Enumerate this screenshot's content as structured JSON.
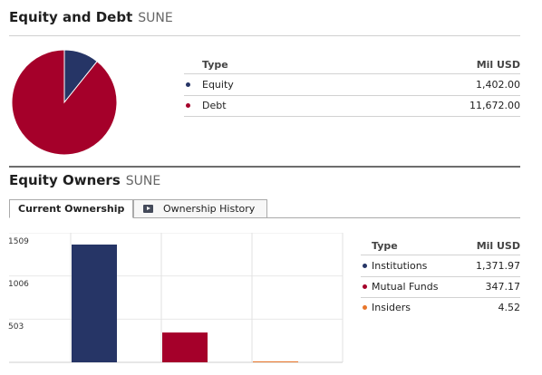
{
  "equity_debt": {
    "title": "Equity and Debt",
    "ticker": "SUNE",
    "table": {
      "col_type": "Type",
      "col_value": "Mil USD",
      "rows": [
        {
          "label": "Equity",
          "value": "1,402.00",
          "color": "#263566"
        },
        {
          "label": "Debt",
          "value": "11,672.00",
          "color": "#a5002a"
        }
      ]
    },
    "pie": [
      {
        "label": "Equity",
        "value": 1402.0,
        "color": "#263566"
      },
      {
        "label": "Debt",
        "value": 11672.0,
        "color": "#a5002a"
      }
    ]
  },
  "equity_owners": {
    "title": "Equity Owners",
    "ticker": "SUNE",
    "tabs": [
      {
        "label": "Current Ownership",
        "active": true
      },
      {
        "label": "Ownership History",
        "active": false,
        "icon": "video-icon"
      }
    ],
    "table": {
      "col_type": "Type",
      "col_value": "Mil USD",
      "rows": [
        {
          "label": "Institutions",
          "value": "1,371.97",
          "color": "#263566"
        },
        {
          "label": "Mutual Funds",
          "value": "347.17",
          "color": "#a5002a"
        },
        {
          "label": "Insiders",
          "value": "4.52",
          "color": "#e8762b"
        }
      ]
    }
  },
  "chart_data": {
    "type": "bar",
    "categories": [
      "Institutions",
      "Mutual Funds",
      "Insiders"
    ],
    "values": [
      1371.97,
      347.17,
      4.52
    ],
    "colors": [
      "#263566",
      "#a5002a",
      "#e8762b"
    ],
    "yticks": [
      "1509",
      "1006",
      "503"
    ],
    "ylim": [
      0,
      1509
    ],
    "grid": true
  }
}
